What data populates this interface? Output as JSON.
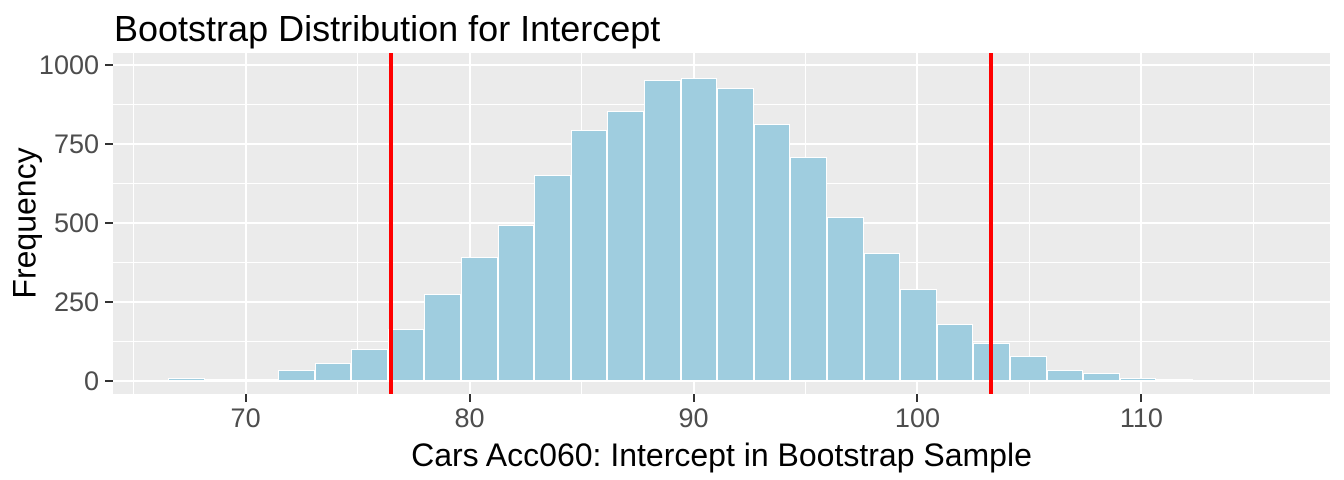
{
  "chart_data": {
    "type": "bar",
    "subtype": "histogram",
    "title": "Bootstrap Distribution for Intercept",
    "xlabel": "Cars Acc060: Intercept in Bootstrap Sample",
    "ylabel": "Frequency",
    "xlim": [
      64.08,
      118.42
    ],
    "ylim": [
      -42,
      1037
    ],
    "x_major_ticks": [
      70,
      80,
      90,
      100,
      110
    ],
    "x_minor_gridlines": [
      65,
      75,
      85,
      95,
      105,
      115
    ],
    "y_major_ticks": [
      0,
      250,
      500,
      750,
      1000
    ],
    "y_minor_gridlines": [
      125,
      375,
      625,
      875
    ],
    "grid": true,
    "legend": "none",
    "histogram": {
      "bin_start": 66.55,
      "bin_width": 1.634,
      "frequencies": [
        8,
        5,
        6,
        35,
        55,
        100,
        165,
        273,
        390,
        493,
        652,
        793,
        855,
        950,
        959,
        927,
        812,
        708,
        518,
        403,
        290,
        178,
        119,
        79,
        33,
        26,
        9,
        4
      ]
    },
    "vlines": [
      76.5,
      103.3
    ],
    "colors": {
      "bar_fill": "#9FCDDF",
      "bar_outline": "#FFFFFF",
      "panel_background": "#EBEBEB",
      "gridline": "#FFFFFF",
      "vline": "#FF0000",
      "tick_mark": "#333333",
      "axis_text": "#4D4D4D",
      "title_text": "#000000"
    }
  }
}
